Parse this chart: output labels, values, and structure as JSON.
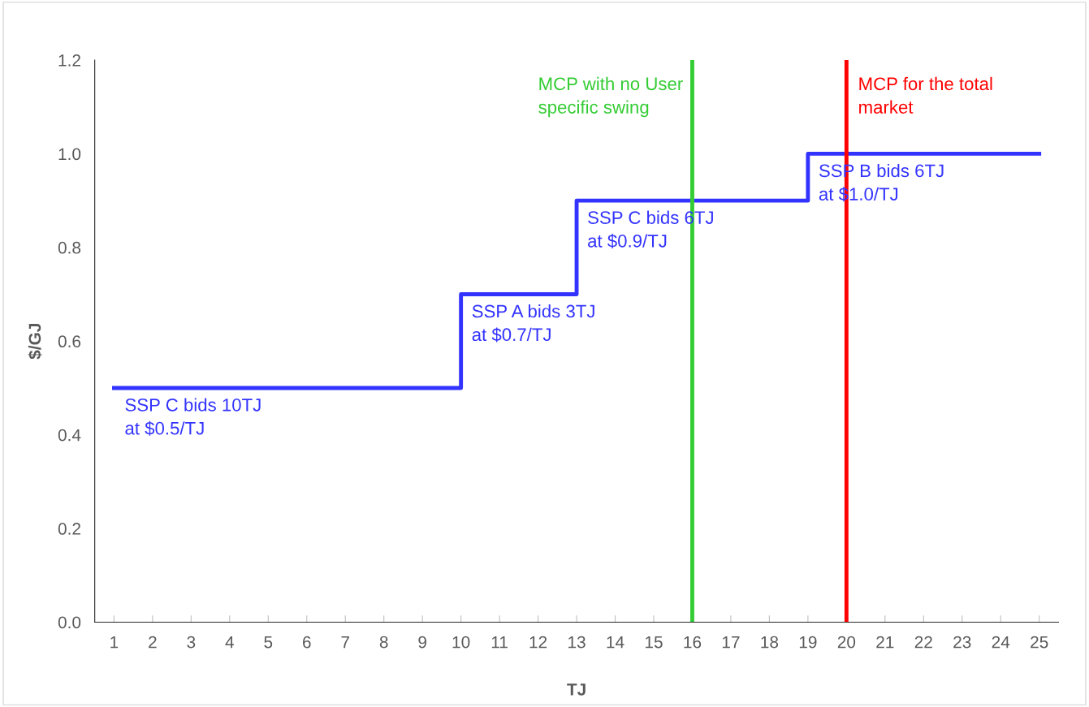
{
  "chart_data": {
    "type": "step",
    "xlabel": "TJ",
    "ylabel": "$/GJ",
    "x": [
      1,
      2,
      3,
      4,
      5,
      6,
      7,
      8,
      9,
      10,
      11,
      12,
      13,
      14,
      15,
      16,
      17,
      18,
      19,
      20,
      21,
      22,
      23,
      24,
      25
    ],
    "series": [
      {
        "color": "#3333ff",
        "values": [
          0.5,
          0.5,
          0.5,
          0.5,
          0.5,
          0.5,
          0.5,
          0.5,
          0.5,
          0.7,
          0.7,
          0.7,
          0.9,
          0.9,
          0.9,
          0.9,
          0.9,
          0.9,
          1.0,
          1.0,
          1.0,
          1.0,
          1.0,
          1.0,
          1.0
        ]
      }
    ],
    "xlim": [
      0.5,
      25.5
    ],
    "xticks": [
      1,
      2,
      3,
      4,
      5,
      6,
      7,
      8,
      9,
      10,
      11,
      12,
      13,
      14,
      15,
      16,
      17,
      18,
      19,
      20,
      21,
      22,
      23,
      24,
      25
    ],
    "ylim": [
      0,
      1.2
    ],
    "yticks": [
      {
        "value": 0,
        "label": "0.0"
      },
      {
        "value": 0.2,
        "label": "0.2"
      },
      {
        "value": 0.4,
        "label": "0.4"
      },
      {
        "value": 0.6,
        "label": "0.6"
      },
      {
        "value": 0.8,
        "label": "0.8"
      },
      {
        "value": 1.0,
        "label": "1.0"
      },
      {
        "value": 1.2,
        "label": "1.2"
      }
    ],
    "ref_lines": [
      {
        "axis": "x",
        "value": 16,
        "color": "#33cc33",
        "label": "MCP with no User\nspecific swing"
      },
      {
        "axis": "x",
        "value": 20,
        "color": "#ff0000",
        "label": "MCP for the total\nmarket"
      }
    ],
    "annotations": [
      "SSP C bids 10TJ\nat $0.5/TJ",
      "SSP A bids 3TJ\nat $0.7/TJ",
      "SSP C bids 6TJ\nat $0.9/TJ",
      "SSP B bids 6TJ\nat $1.0/TJ"
    ],
    "grid": false,
    "legend": false
  }
}
